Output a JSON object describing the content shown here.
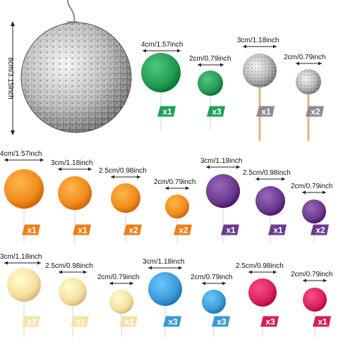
{
  "disco_size_label": "8cm/3.15inch",
  "rows": [
    {
      "items": [
        {
          "kind": "ball",
          "size": "4cm/1.57inch",
          "count": "x1",
          "color": "#239a53",
          "tag": "#21a05a"
        },
        {
          "kind": "ball",
          "size": "2cm/0.79inch",
          "count": "x3",
          "color": "#239a53",
          "tag": "#21a05a"
        },
        {
          "kind": "disco",
          "size": "3cm/1.18inch",
          "count": "x1",
          "color": "#c9c9c9",
          "tag": "#8c8c8c"
        },
        {
          "kind": "disco",
          "size": "2cm/0.79inch",
          "count": "x2",
          "color": "#c9c9c9",
          "tag": "#8c8c8c"
        }
      ]
    },
    {
      "items": [
        {
          "kind": "ball",
          "size": "4cm/1.57inch",
          "count": "x1",
          "color": "#f08a1c",
          "tag": "#ef7f16"
        },
        {
          "kind": "ball",
          "size": "3cm/1.18inch",
          "count": "x1",
          "color": "#f08a1c",
          "tag": "#ef7f16"
        },
        {
          "kind": "ball",
          "size": "2.5cm/0.98inch",
          "count": "x2",
          "color": "#f08a1c",
          "tag": "#ef7f16"
        },
        {
          "kind": "ball",
          "size": "2cm/0.79inch",
          "count": "x2",
          "color": "#f08a1c",
          "tag": "#ef7f16"
        },
        {
          "kind": "ball",
          "size": "3cm/1.18inch",
          "count": "x1",
          "color": "#6b3a8e",
          "tag": "#6a3b8c"
        },
        {
          "kind": "ball",
          "size": "2.5cm/0.98inch",
          "count": "x1",
          "color": "#6b3a8e",
          "tag": "#6a3b8c"
        },
        {
          "kind": "ball",
          "size": "2cm/0.79inch",
          "count": "x2",
          "color": "#6b3a8e",
          "tag": "#6a3b8c"
        }
      ]
    },
    {
      "items": [
        {
          "kind": "ball",
          "size": "3cm/1.18inch",
          "count": "x2",
          "color": "#f5dea0",
          "tag": "#f4e4a6"
        },
        {
          "kind": "ball",
          "size": "2.5cm/0.98inch",
          "count": "x1",
          "color": "#f5dea0",
          "tag": "#f4e4a6"
        },
        {
          "kind": "ball",
          "size": "2cm/0.79inch",
          "count": "x1",
          "color": "#f5dea0",
          "tag": "#f4e4a6"
        },
        {
          "kind": "ball",
          "size": "3cm/1.18inch",
          "count": "x3",
          "color": "#3d9ad6",
          "tag": "#3a9ad6"
        },
        {
          "kind": "ball",
          "size": "2cm/0.79inch",
          "count": "x3",
          "color": "#3d9ad6",
          "tag": "#3a9ad6"
        },
        {
          "kind": "ball",
          "size": "2.5cm/0.98inch",
          "count": "x3",
          "color": "#d8205e",
          "tag": "#d21f5c"
        },
        {
          "kind": "ball",
          "size": "2cm/0.79inch",
          "count": "x1",
          "color": "#d8205e",
          "tag": "#d21f5c"
        }
      ]
    }
  ]
}
